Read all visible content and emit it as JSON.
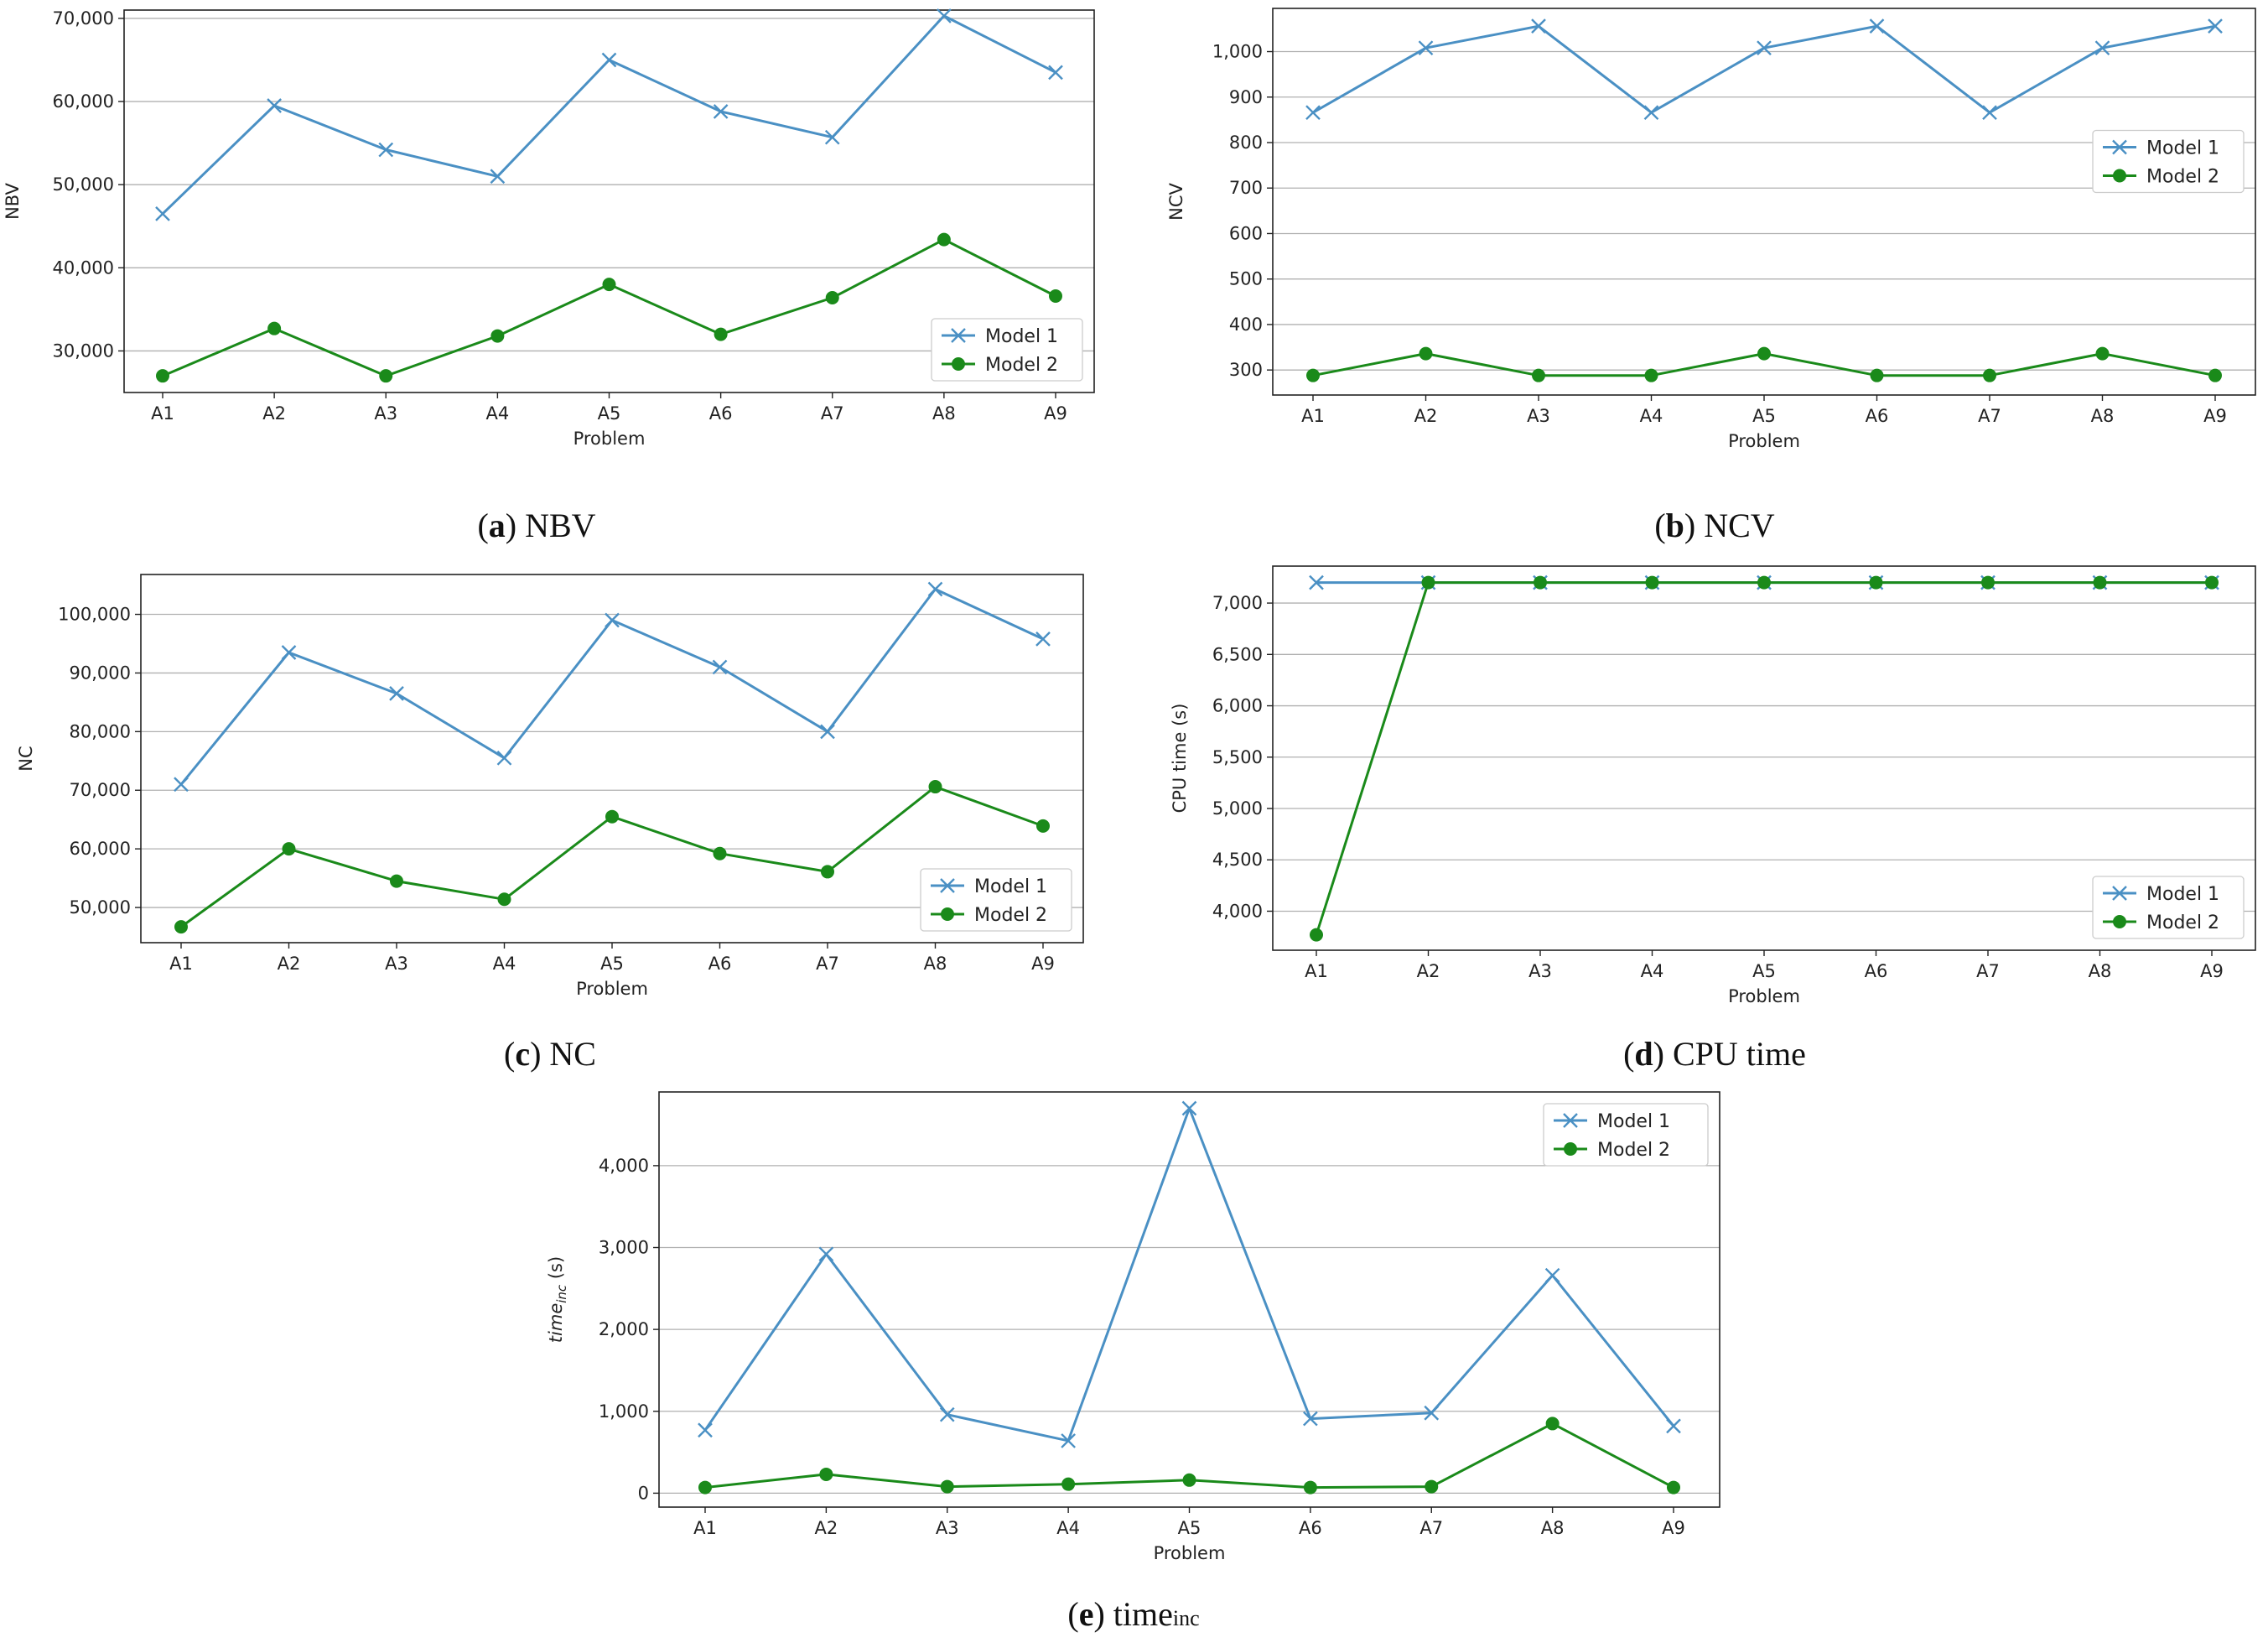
{
  "figure": {
    "xlabel": "Problem",
    "categories": [
      "A1",
      "A2",
      "A3",
      "A4",
      "A5",
      "A6",
      "A7",
      "A8",
      "A9"
    ],
    "legend": [
      "Model 1",
      "Model 2"
    ],
    "colors": {
      "model1": "#4a90c4",
      "model2": "#1a8a1a"
    }
  },
  "chart_data": [
    {
      "id": "a",
      "type": "line",
      "caption_letter": "a",
      "caption_text": " NBV",
      "title": "NBV",
      "ylabel": "NBV",
      "xlabel": "Problem",
      "categories": [
        "A1",
        "A2",
        "A3",
        "A4",
        "A5",
        "A6",
        "A7",
        "A8",
        "A9"
      ],
      "ylim": [
        25000,
        71000
      ],
      "yticks": [
        30000,
        40000,
        50000,
        60000,
        70000
      ],
      "ytick_labels": [
        "30,000",
        "40,000",
        "50,000",
        "60,000",
        "70,000"
      ],
      "legend_position": "lower-right",
      "series": [
        {
          "name": "Model 1",
          "marker": "x",
          "values": [
            46500,
            59500,
            54200,
            51000,
            65000,
            58800,
            55700,
            70300,
            63500
          ]
        },
        {
          "name": "Model 2",
          "marker": "o",
          "values": [
            27000,
            32700,
            27000,
            31800,
            38000,
            32000,
            36400,
            43400,
            36600
          ]
        }
      ]
    },
    {
      "id": "b",
      "type": "line",
      "caption_letter": "b",
      "caption_text": " NCV",
      "title": "NCV",
      "ylabel": "NCV",
      "xlabel": "Problem",
      "categories": [
        "A1",
        "A2",
        "A3",
        "A4",
        "A5",
        "A6",
        "A7",
        "A8",
        "A9"
      ],
      "ylim": [
        245,
        1095
      ],
      "yticks": [
        300,
        400,
        500,
        600,
        700,
        800,
        900,
        1000
      ],
      "ytick_labels": [
        "300",
        "400",
        "500",
        "600",
        "700",
        "800",
        "900",
        "1,000"
      ],
      "legend_position": "center-right",
      "series": [
        {
          "name": "Model 1",
          "marker": "x",
          "values": [
            866,
            1008,
            1056,
            866,
            1008,
            1056,
            866,
            1008,
            1056
          ]
        },
        {
          "name": "Model 2",
          "marker": "o",
          "values": [
            288,
            336,
            288,
            288,
            336,
            288,
            288,
            336,
            288
          ]
        }
      ]
    },
    {
      "id": "c",
      "type": "line",
      "caption_letter": "c",
      "caption_text": " NC",
      "title": "NC",
      "ylabel": "NC",
      "xlabel": "Problem",
      "categories": [
        "A1",
        "A2",
        "A3",
        "A4",
        "A5",
        "A6",
        "A7",
        "A8",
        "A9"
      ],
      "ylim": [
        44000,
        106800
      ],
      "yticks": [
        50000,
        60000,
        70000,
        80000,
        90000,
        100000
      ],
      "ytick_labels": [
        "50,000",
        "60,000",
        "70,000",
        "80,000",
        "90,000",
        "100,000"
      ],
      "legend_position": "lower-right",
      "series": [
        {
          "name": "Model 1",
          "marker": "x",
          "values": [
            71000,
            93500,
            86500,
            75500,
            99000,
            91000,
            80000,
            104300,
            95800
          ]
        },
        {
          "name": "Model 2",
          "marker": "o",
          "values": [
            46700,
            60000,
            54500,
            51400,
            65500,
            59200,
            56100,
            70600,
            63900
          ]
        }
      ]
    },
    {
      "id": "d",
      "type": "line",
      "caption_letter": "d",
      "caption_text": " CPU time",
      "title": "CPU time",
      "ylabel": "CPU time (s)",
      "xlabel": "Problem",
      "categories": [
        "A1",
        "A2",
        "A3",
        "A4",
        "A5",
        "A6",
        "A7",
        "A8",
        "A9"
      ],
      "ylim": [
        3620,
        7360
      ],
      "yticks": [
        4000,
        4500,
        5000,
        5500,
        6000,
        6500,
        7000
      ],
      "ytick_labels": [
        "4,000",
        "4,500",
        "5,000",
        "5,500",
        "6,000",
        "6,500",
        "7,000"
      ],
      "legend_position": "lower-right",
      "series": [
        {
          "name": "Model 1",
          "marker": "x",
          "values": [
            7200,
            7200,
            7200,
            7200,
            7200,
            7200,
            7200,
            7200,
            7200
          ]
        },
        {
          "name": "Model 2",
          "marker": "o",
          "values": [
            3770,
            7200,
            7200,
            7200,
            7200,
            7200,
            7200,
            7200,
            7200
          ]
        }
      ]
    },
    {
      "id": "e",
      "type": "line",
      "caption_letter": "e",
      "caption_text": " time",
      "caption_sub": "inc",
      "title": "time_inc",
      "ylabel": "time",
      "ylabel_sub": "inc",
      "ylabel_suffix": " (s)",
      "xlabel": "Problem",
      "categories": [
        "A1",
        "A2",
        "A3",
        "A4",
        "A5",
        "A6",
        "A7",
        "A8",
        "A9"
      ],
      "ylim": [
        -170,
        4900
      ],
      "yticks": [
        0,
        1000,
        2000,
        3000,
        4000
      ],
      "ytick_labels": [
        "0",
        "1,000",
        "2,000",
        "3,000",
        "4,000"
      ],
      "legend_position": "top-right",
      "series": [
        {
          "name": "Model 1",
          "marker": "x",
          "values": [
            770,
            2920,
            960,
            640,
            4700,
            910,
            980,
            2660,
            820
          ]
        },
        {
          "name": "Model 2",
          "marker": "o",
          "values": [
            70,
            230,
            80,
            110,
            160,
            70,
            80,
            850,
            70
          ]
        }
      ]
    }
  ]
}
